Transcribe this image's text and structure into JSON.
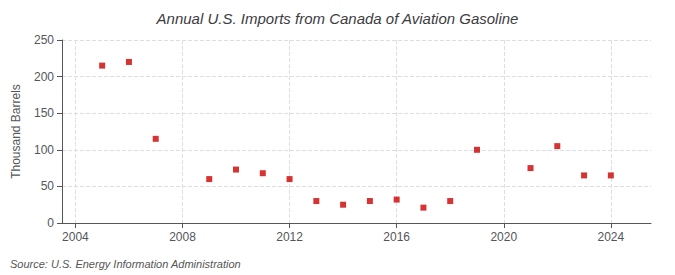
{
  "chart_data": {
    "type": "scatter",
    "title": "Annual U.S. Imports from Canada of Aviation Gasoline",
    "ylabel": "Thousand Barrels",
    "annotations": [
      "Source: U.S. Energy Information Administration"
    ],
    "x": [
      2005,
      2006,
      2007,
      2009,
      2010,
      2011,
      2012,
      2013,
      2014,
      2015,
      2016,
      2017,
      2018,
      2019,
      2021,
      2022,
      2023,
      2024
    ],
    "values": [
      215,
      220,
      115,
      60,
      73,
      68,
      60,
      30,
      25,
      30,
      32,
      21,
      30,
      100,
      75,
      105,
      65,
      65
    ],
    "color": "#cc0000",
    "marker": "square",
    "xlim": [
      2003.5,
      2025.5
    ],
    "xticks": [
      2004,
      2008,
      2012,
      2016,
      2020,
      2024
    ],
    "ylim": [
      0,
      250
    ],
    "yticks": [
      0,
      50,
      100,
      150,
      200,
      250
    ],
    "grid": true
  }
}
